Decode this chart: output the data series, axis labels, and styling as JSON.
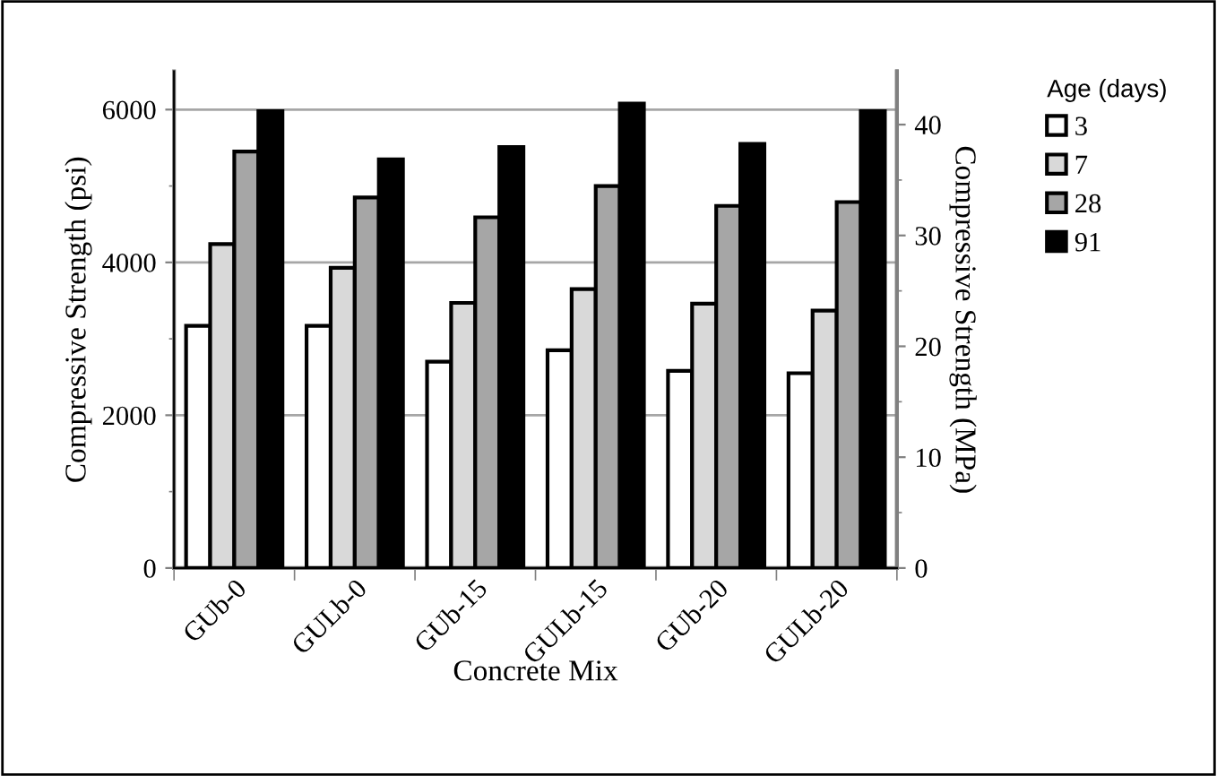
{
  "chart_data": {
    "type": "bar",
    "xlabel": "Concrete Mix",
    "ylabel": "Compressive Strength (psi)",
    "y2label": "Compressive Strength (MPa)",
    "legend_title": "Age (days)",
    "categories": [
      "GUb-0",
      "GULb-0",
      "GUb-15",
      "GULb-15",
      "GUb-20",
      "GULb-20"
    ],
    "series": [
      {
        "name": "3",
        "color": "#ffffff",
        "values": [
          3170,
          3170,
          2700,
          2850,
          2580,
          2550
        ]
      },
      {
        "name": "7",
        "color": "#d9d9d9",
        "values": [
          4240,
          3930,
          3470,
          3650,
          3460,
          3370
        ]
      },
      {
        "name": "28",
        "color": "#a6a6a6",
        "values": [
          5450,
          4850,
          4590,
          5000,
          4740,
          4790
        ]
      },
      {
        "name": "91",
        "color": "#000000",
        "values": [
          5980,
          5350,
          5510,
          6080,
          5550,
          5980
        ]
      }
    ],
    "ylim": [
      0,
      6500
    ],
    "yticks": [
      0,
      {
        "value": 1000,
        "label": null
      },
      2000,
      {
        "value": 3000,
        "label": null
      },
      4000,
      {
        "value": 5000,
        "label": null
      },
      6000
    ],
    "y2lim": [
      0,
      44.8
    ],
    "y2ticks": [
      0,
      {
        "value": 5,
        "label": null
      },
      10,
      {
        "value": 15,
        "label": null
      },
      20,
      {
        "value": 25,
        "label": null
      },
      30,
      {
        "value": 35,
        "label": null
      },
      40
    ],
    "grid": "y",
    "legend": "right"
  }
}
